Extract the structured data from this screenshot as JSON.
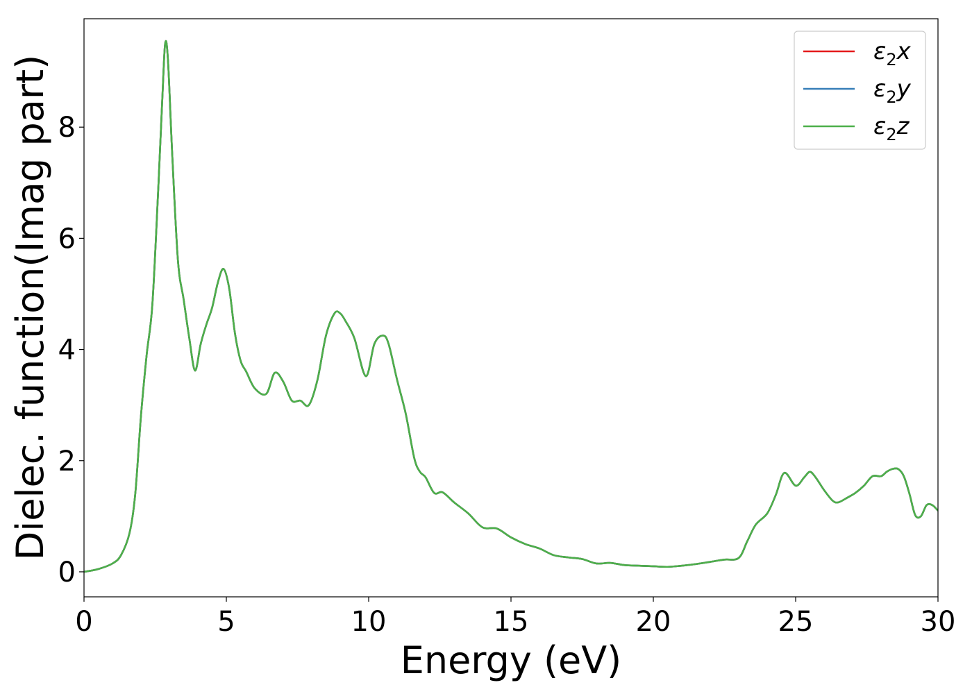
{
  "chart_data": {
    "type": "line",
    "xlabel": "Energy (eV)",
    "ylabel": "Dielec. function(Imag part)",
    "xlim": [
      0,
      30
    ],
    "ylim": [
      -0.45,
      9.95
    ],
    "x_ticks": [
      0,
      5,
      10,
      15,
      20,
      25,
      30
    ],
    "y_ticks": [
      0,
      2,
      4,
      6,
      8
    ],
    "grid": false,
    "legend_position": "top-right",
    "series": [
      {
        "name": "ε₂x",
        "label_base": "ε",
        "label_sub": "2",
        "label_axis": "x",
        "color": "#e41a1c"
      },
      {
        "name": "ε₂y",
        "label_base": "ε",
        "label_sub": "2",
        "label_axis": "y",
        "color": "#377eb8"
      },
      {
        "name": "ε₂z",
        "label_base": "ε",
        "label_sub": "2",
        "label_axis": "z",
        "color": "#4daf4a"
      }
    ],
    "x": [
      0,
      0.5,
      1.0,
      1.3,
      1.6,
      1.8,
      2.0,
      2.2,
      2.4,
      2.6,
      2.75,
      2.85,
      2.95,
      3.1,
      3.3,
      3.5,
      3.7,
      3.9,
      4.1,
      4.3,
      4.5,
      4.7,
      4.9,
      5.1,
      5.3,
      5.5,
      5.7,
      6.0,
      6.4,
      6.7,
      7.0,
      7.3,
      7.6,
      7.9,
      8.2,
      8.5,
      8.8,
      9.0,
      9.2,
      9.5,
      9.9,
      10.2,
      10.5,
      10.7,
      11.0,
      11.3,
      11.6,
      11.8,
      12.0,
      12.3,
      12.6,
      13.0,
      13.5,
      14.0,
      14.5,
      15.0,
      15.5,
      16.0,
      16.5,
      17.0,
      17.5,
      18.0,
      18.5,
      19.0,
      19.5,
      20.0,
      20.5,
      21.0,
      21.5,
      22.0,
      22.5,
      23.0,
      23.3,
      23.6,
      24.0,
      24.3,
      24.6,
      25.0,
      25.3,
      25.5,
      25.7,
      26.0,
      26.3,
      26.5,
      26.8,
      27.1,
      27.4,
      27.7,
      28.0,
      28.2,
      28.4,
      28.6,
      28.8,
      29.0,
      29.2,
      29.4,
      29.6,
      29.8,
      30.0
    ],
    "values": [
      0.0,
      0.05,
      0.15,
      0.3,
      0.7,
      1.4,
      2.8,
      3.9,
      4.8,
      6.8,
      8.5,
      9.5,
      9.2,
      7.5,
      5.6,
      4.9,
      4.2,
      3.62,
      4.1,
      4.45,
      4.75,
      5.2,
      5.45,
      5.1,
      4.3,
      3.8,
      3.6,
      3.3,
      3.2,
      3.58,
      3.42,
      3.08,
      3.08,
      3.0,
      3.45,
      4.25,
      4.65,
      4.65,
      4.5,
      4.2,
      3.52,
      4.1,
      4.25,
      4.1,
      3.45,
      2.85,
      2.05,
      1.8,
      1.7,
      1.42,
      1.43,
      1.25,
      1.05,
      0.8,
      0.78,
      0.62,
      0.5,
      0.42,
      0.3,
      0.26,
      0.23,
      0.15,
      0.16,
      0.12,
      0.11,
      0.1,
      0.09,
      0.11,
      0.14,
      0.18,
      0.22,
      0.25,
      0.55,
      0.85,
      1.05,
      1.38,
      1.78,
      1.55,
      1.7,
      1.8,
      1.7,
      1.47,
      1.28,
      1.25,
      1.33,
      1.42,
      1.55,
      1.72,
      1.72,
      1.8,
      1.85,
      1.85,
      1.72,
      1.4,
      1.02,
      1.0,
      1.2,
      1.2,
      1.1
    ]
  }
}
